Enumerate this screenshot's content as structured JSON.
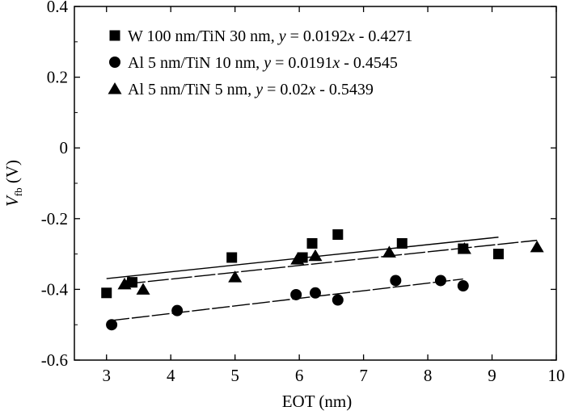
{
  "chart_data": {
    "type": "scatter",
    "xlabel": "EOT (nm)",
    "ylabel_main": "V",
    "ylabel_sub": "fb",
    "ylabel_unit": " (V)",
    "xlim": [
      2.5,
      10
    ],
    "ylim": [
      -0.6,
      0.4
    ],
    "xticks": [
      3,
      4,
      5,
      6,
      7,
      8,
      9,
      10
    ],
    "xtick_labels": [
      "3",
      "4",
      "5",
      "6",
      "7",
      "8",
      "9",
      "10"
    ],
    "yticks": [
      -0.6,
      -0.4,
      -0.2,
      0,
      0.2,
      0.4
    ],
    "ytick_labels": [
      "-0.6",
      "-0.4",
      "-0.2",
      "0",
      "0.2",
      "0.4"
    ],
    "grid": false,
    "legend_position": "top-left",
    "series": [
      {
        "name": "W 100 nm/TiN 30 nm, y = 0.0192x - 0.4271",
        "marker": "square",
        "color": "#000000",
        "x": [
          3.0,
          3.4,
          4.95,
          6.05,
          6.2,
          6.6,
          7.6,
          8.55,
          9.1
        ],
        "y": [
          -0.41,
          -0.38,
          -0.31,
          -0.31,
          -0.27,
          -0.245,
          -0.27,
          -0.285,
          -0.3
        ],
        "fit": {
          "slope": 0.0192,
          "intercept": -0.4271,
          "x_range": [
            3.0,
            9.1
          ]
        }
      },
      {
        "name": "Al 5 nm/TiN 10 nm, y = 0.0191x - 0.4545",
        "marker": "circle",
        "color": "#000000",
        "x": [
          3.08,
          4.1,
          5.95,
          6.25,
          6.6,
          7.5,
          8.2,
          8.55
        ],
        "y": [
          -0.5,
          -0.46,
          -0.415,
          -0.41,
          -0.43,
          -0.375,
          -0.375,
          -0.39
        ],
        "fit": {
          "slope": 0.0191,
          "intercept": -0.4545,
          "x_range": [
            3.08,
            8.55
          ]
        }
      },
      {
        "name": "Al 5 nm/TiN 5 nm, y = 0.02x - 0.5439",
        "marker": "triangle",
        "color": "#000000",
        "x": [
          3.28,
          3.35,
          3.57,
          5.0,
          5.97,
          6.25,
          7.4,
          8.57,
          9.7
        ],
        "y": [
          -0.385,
          -0.38,
          -0.4,
          -0.365,
          -0.315,
          -0.305,
          -0.295,
          -0.285,
          -0.28
        ],
        "fit": {
          "slope": 0.02,
          "intercept": -0.5439,
          "x_range": [
            3.28,
            9.7
          ]
        }
      }
    ]
  }
}
